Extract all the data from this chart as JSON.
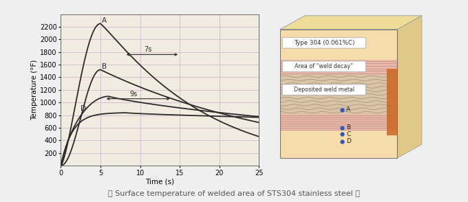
{
  "bg_color": "#f2ebe0",
  "fig_bg": "#efefef",
  "ylabel": "Temperature (°F)",
  "xlabel": "Time (s)",
  "xlim": [
    0,
    25
  ],
  "ylim": [
    0,
    2400
  ],
  "yticks": [
    200,
    400,
    600,
    800,
    1000,
    1200,
    1400,
    1600,
    1800,
    2000,
    2200
  ],
  "xticks": [
    0,
    5,
    10,
    15,
    20,
    25
  ],
  "grid_color": "#d0b8d0",
  "curve_color": "#2a2a2a",
  "title_caption": "（ Surface temperature of welded area of STS304 stainless steel ）",
  "annotation_7s": "7s",
  "annotation_9s": "9s",
  "label_A": "A",
  "label_B": "B",
  "label_D": "D",
  "diagram_title": "Type 304 (0.061%C)",
  "diagram_label1": "Area of “weld decay”",
  "diagram_label2": "Deposited weld metal",
  "color_base": "#f5dcaa",
  "color_weld_decay_stripe": "#e8b8a8",
  "color_weld_metal": "#d8c4a8",
  "color_side_right": "#e0c888",
  "color_top": "#eedd99",
  "color_orange": "#cc6622",
  "dot_color": "#3355bb"
}
